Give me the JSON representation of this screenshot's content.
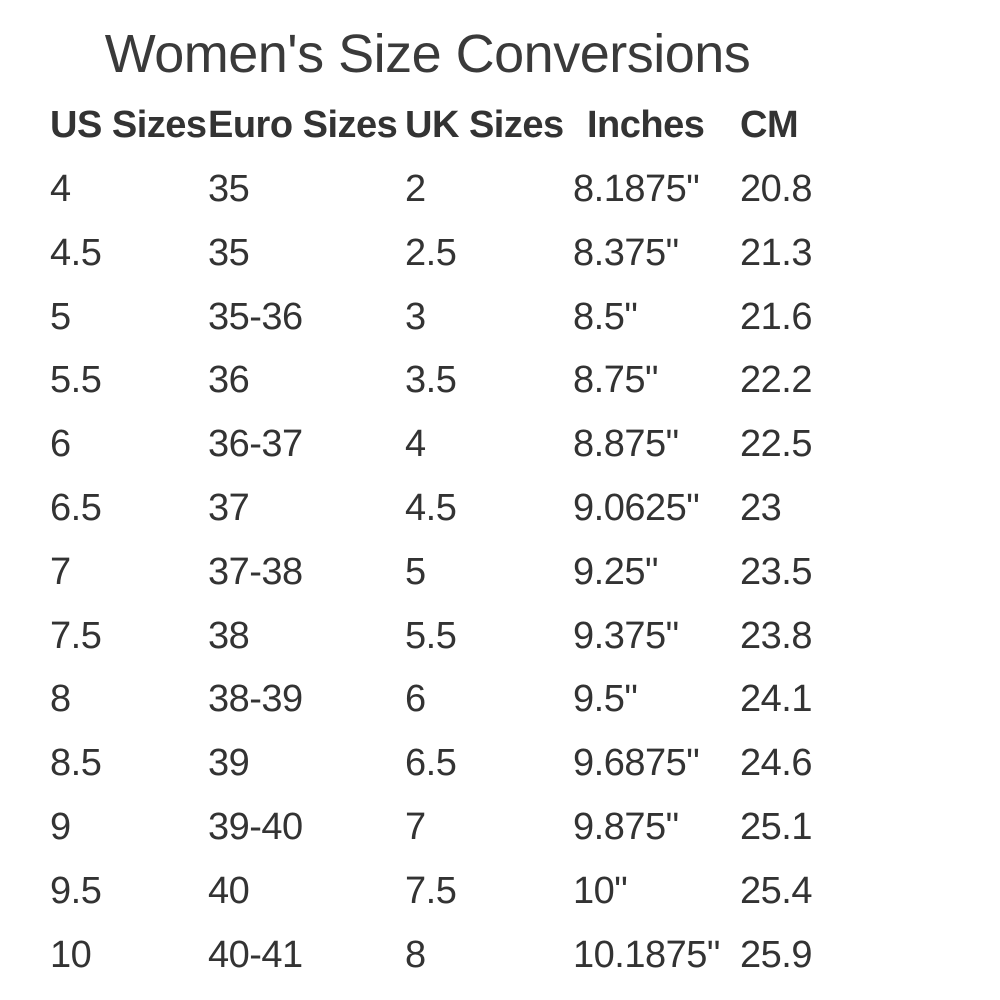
{
  "chart_data": {
    "type": "table",
    "title": "Women's Size Conversions",
    "columns": [
      "US Sizes",
      "Euro Sizes",
      "UK Sizes",
      "Inches",
      "CM"
    ],
    "rows": [
      [
        "4",
        "35",
        "2",
        "8.1875\"",
        "20.8"
      ],
      [
        "4.5",
        "35",
        "2.5",
        "8.375\"",
        "21.3"
      ],
      [
        "5",
        "35-36",
        "3",
        "8.5\"",
        "21.6"
      ],
      [
        "5.5",
        "36",
        "3.5",
        "8.75\"",
        "22.2"
      ],
      [
        "6",
        "36-37",
        "4",
        "8.875\"",
        "22.5"
      ],
      [
        "6.5",
        "37",
        "4.5",
        "9.0625\"",
        "23"
      ],
      [
        "7",
        "37-38",
        "5",
        "9.25\"",
        "23.5"
      ],
      [
        "7.5",
        "38",
        "5.5",
        "9.375\"",
        "23.8"
      ],
      [
        "8",
        "38-39",
        "6",
        "9.5\"",
        "24.1"
      ],
      [
        "8.5",
        "39",
        "6.5",
        "9.6875\"",
        "24.6"
      ],
      [
        "9",
        "39-40",
        "7",
        "9.875\"",
        "25.1"
      ],
      [
        "9.5",
        "40",
        "7.5",
        "10\"",
        "25.4"
      ],
      [
        "10",
        "40-41",
        "8",
        "10.1875\"",
        "25.9"
      ]
    ],
    "layout": {
      "grid": "off",
      "header_style": "bold",
      "alignment": "left"
    }
  },
  "colors": {
    "text": "#333333",
    "background": "#ffffff"
  }
}
